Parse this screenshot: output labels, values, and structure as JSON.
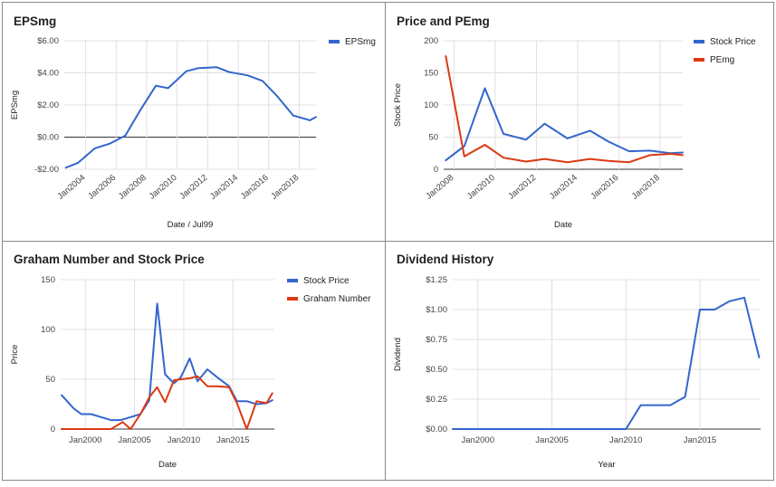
{
  "colors": {
    "blue": "#3366cc",
    "red": "#dc3912"
  },
  "chart_data": [
    {
      "type": "line",
      "title": "EPSmg",
      "xlabel": "Date / Jul99",
      "ylabel": "EPSmg",
      "ylim": [
        -2,
        6
      ],
      "yticks": [
        -2,
        0,
        2,
        4,
        6
      ],
      "ytick_labels": [
        "-$2.00",
        "$0.00",
        "$2.00",
        "$4.00",
        "$6.00"
      ],
      "xlim": [
        2002.6,
        2019.1
      ],
      "xticks": [
        2004,
        2006,
        2008,
        2010,
        2012,
        2014,
        2016,
        2018
      ],
      "xtick_labels": [
        "Jan2004",
        "Jan2006",
        "Jan2008",
        "Jan2010",
        "Jan2012",
        "Jan2014",
        "Jan2016",
        "Jan2018"
      ],
      "rotate_xticks": true,
      "legend": "top-right",
      "series": [
        {
          "name": "EPSmg",
          "color": "#3366cc",
          "x": [
            2002.7,
            2003.5,
            2004.6,
            2005.6,
            2006.6,
            2007.6,
            2008.6,
            2009.4,
            2010.6,
            2011.4,
            2012.6,
            2013.4,
            2014.6,
            2015.6,
            2016.6,
            2017.6,
            2018.7,
            2019.1
          ],
          "y": [
            -1.9,
            -1.6,
            -0.7,
            -0.4,
            0.1,
            1.7,
            3.2,
            3.05,
            4.1,
            4.3,
            4.35,
            4.05,
            3.85,
            3.5,
            2.5,
            1.35,
            1.05,
            1.25
          ]
        }
      ]
    },
    {
      "type": "line",
      "title": "Price and PEmg",
      "xlabel": "Date",
      "ylabel": "Stock Price",
      "ylim": [
        0,
        200
      ],
      "yticks": [
        0,
        50,
        100,
        150,
        200
      ],
      "ytick_labels": [
        "0",
        "50",
        "100",
        "150",
        "200"
      ],
      "xlim": [
        2007.5,
        2019.1
      ],
      "xticks": [
        2008,
        2010,
        2012,
        2014,
        2016,
        2018
      ],
      "xtick_labels": [
        "Jan2008",
        "Jan2010",
        "Jan2012",
        "Jan2014",
        "Jan2016",
        "Jan2018"
      ],
      "rotate_xticks": true,
      "legend": "top-right",
      "series": [
        {
          "name": "Stock Price",
          "color": "#3366cc",
          "x": [
            2007.6,
            2008.5,
            2009.5,
            2010.4,
            2011.5,
            2012.4,
            2013.5,
            2014.6,
            2015.5,
            2016.5,
            2017.5,
            2018.5,
            2019.1
          ],
          "y": [
            14,
            36,
            126,
            55,
            46,
            71,
            48,
            60,
            43,
            28,
            29,
            25,
            26
          ]
        },
        {
          "name": "PEmg",
          "color": "#dc3912",
          "x": [
            2007.6,
            2008.5,
            2009.5,
            2010.4,
            2011.5,
            2012.4,
            2013.5,
            2014.6,
            2015.5,
            2016.5,
            2017.5,
            2018.5,
            2019.1
          ],
          "y": [
            176,
            20,
            38,
            18,
            12,
            16,
            11,
            16,
            13,
            11,
            22,
            24,
            22
          ]
        }
      ]
    },
    {
      "type": "line",
      "title": "Graham Number and Stock Price",
      "xlabel": "Date",
      "ylabel": "Price",
      "ylim": [
        0,
        150
      ],
      "yticks": [
        0,
        50,
        100,
        150
      ],
      "ytick_labels": [
        "0",
        "50",
        "100",
        "150"
      ],
      "xlim": [
        1997.5,
        2019.2
      ],
      "xticks": [
        2000,
        2005,
        2010,
        2015
      ],
      "xtick_labels": [
        "Jan2000",
        "Jan2005",
        "Jan2010",
        "Jan2015"
      ],
      "rotate_xticks": false,
      "legend": "top-right",
      "series": [
        {
          "name": "Stock Price",
          "color": "#3366cc",
          "x": [
            1997.6,
            1998.8,
            1999.6,
            2000.6,
            2001.6,
            2002.6,
            2003.6,
            2004.6,
            2005.6,
            2006.5,
            2007.3,
            2008.1,
            2009.0,
            2009.7,
            2010.6,
            2011.4,
            2012.4,
            2013.4,
            2014.6,
            2015.4,
            2016.4,
            2017.4,
            2018.4,
            2019.0
          ],
          "y": [
            34,
            21,
            15,
            15,
            12,
            9,
            9,
            12,
            15,
            29,
            126,
            55,
            46,
            52,
            71,
            48,
            60,
            52,
            43,
            28,
            28,
            25,
            26,
            29
          ]
        },
        {
          "name": "Graham Number",
          "color": "#dc3912",
          "x": [
            1997.6,
            1999.6,
            2001.6,
            2002.6,
            2003.8,
            2004.6,
            2005.6,
            2006.5,
            2007.3,
            2008.1,
            2009.0,
            2009.7,
            2010.6,
            2011.4,
            2012.4,
            2013.4,
            2014.6,
            2015.4,
            2016.4,
            2017.4,
            2018.4,
            2019.0
          ],
          "y": [
            0,
            0,
            0,
            0,
            7,
            0,
            15,
            32,
            42,
            27,
            49,
            50,
            51,
            53,
            43,
            43,
            42,
            26,
            0,
            28,
            26,
            36
          ]
        }
      ]
    },
    {
      "type": "line",
      "title": "Dividend History",
      "xlabel": "Year",
      "ylabel": "Dividend",
      "ylim": [
        0,
        1.25
      ],
      "yticks": [
        0,
        0.25,
        0.5,
        0.75,
        1.0,
        1.25
      ],
      "ytick_labels": [
        "$0.00",
        "$0.25",
        "$0.50",
        "$0.75",
        "$1.00",
        "$1.25"
      ],
      "xlim": [
        1998.3,
        2019.1
      ],
      "xticks": [
        2000,
        2005,
        2010,
        2015
      ],
      "xtick_labels": [
        "Jan2000",
        "Jan2005",
        "Jan2010",
        "Jan2015"
      ],
      "rotate_xticks": false,
      "legend": "none",
      "series": [
        {
          "name": "",
          "color": "#3366cc",
          "x": [
            1998.3,
            2009.0,
            2010.0,
            2011.0,
            2012.0,
            2013.0,
            2014.0,
            2015.0,
            2016.0,
            2017.0,
            2018.0,
            2019.0
          ],
          "y": [
            0,
            0,
            0,
            0.2,
            0.2,
            0.2,
            0.27,
            1.0,
            1.0,
            1.07,
            1.1,
            0.6
          ]
        }
      ]
    }
  ]
}
